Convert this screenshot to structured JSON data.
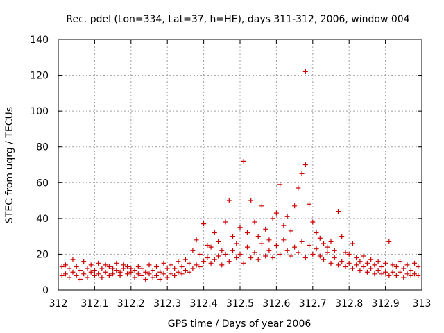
{
  "chart_data": {
    "type": "scatter",
    "title": "Rec. pdel (Lon=334, Lat=37, h=HE), days 311-312, 2006, window 004",
    "xlabel": "GPS time / Days of year 2006",
    "ylabel": "STEC from uqrg / TECUs",
    "xlim": [
      312,
      313
    ],
    "ylim": [
      0,
      140
    ],
    "xticks": [
      312,
      312.1,
      312.2,
      312.3,
      312.4,
      312.5,
      312.6,
      312.7,
      312.8,
      312.9,
      313
    ],
    "xtick_labels": [
      "312",
      "312.1",
      "312.2",
      "312.3",
      "312.4",
      "312.5",
      "312.6",
      "312.7",
      "312.8",
      "312.9",
      "313"
    ],
    "yticks": [
      0,
      20,
      40,
      60,
      80,
      100,
      120,
      140
    ],
    "ytick_labels": [
      "0",
      "20",
      "40",
      "60",
      "80",
      "100",
      "120",
      "140"
    ],
    "grid": true,
    "marker": "+",
    "color": "#cc0000",
    "series": [
      {
        "name": "STEC",
        "points": [
          [
            312.01,
            8
          ],
          [
            312.01,
            13
          ],
          [
            312.02,
            9
          ],
          [
            312.02,
            14
          ],
          [
            312.03,
            7
          ],
          [
            312.03,
            12
          ],
          [
            312.04,
            10
          ],
          [
            312.04,
            17
          ],
          [
            312.05,
            8
          ],
          [
            312.05,
            13
          ],
          [
            312.06,
            6
          ],
          [
            312.06,
            11
          ],
          [
            312.07,
            9
          ],
          [
            312.07,
            16
          ],
          [
            312.08,
            7
          ],
          [
            312.08,
            12
          ],
          [
            312.09,
            10
          ],
          [
            312.09,
            14
          ],
          [
            312.1,
            8
          ],
          [
            312.1,
            11
          ],
          [
            312.11,
            9
          ],
          [
            312.11,
            15
          ],
          [
            312.12,
            7
          ],
          [
            312.12,
            12
          ],
          [
            312.13,
            10
          ],
          [
            312.13,
            14
          ],
          [
            312.14,
            8
          ],
          [
            312.14,
            13
          ],
          [
            312.15,
            9
          ],
          [
            312.15,
            12
          ],
          [
            312.16,
            11
          ],
          [
            312.16,
            15
          ],
          [
            312.17,
            8
          ],
          [
            312.17,
            10
          ],
          [
            312.18,
            12
          ],
          [
            312.18,
            14
          ],
          [
            312.19,
            9
          ],
          [
            312.19,
            13
          ],
          [
            312.2,
            10
          ],
          [
            312.2,
            12
          ],
          [
            312.21,
            7
          ],
          [
            312.21,
            11
          ],
          [
            312.22,
            9
          ],
          [
            312.22,
            13
          ],
          [
            312.23,
            8
          ],
          [
            312.23,
            12
          ],
          [
            312.24,
            6
          ],
          [
            312.24,
            10
          ],
          [
            312.25,
            9
          ],
          [
            312.25,
            14
          ],
          [
            312.26,
            7
          ],
          [
            312.26,
            11
          ],
          [
            312.27,
            8
          ],
          [
            312.27,
            13
          ],
          [
            312.28,
            6
          ],
          [
            312.28,
            10
          ],
          [
            312.29,
            9
          ],
          [
            312.29,
            15
          ],
          [
            312.3,
            7
          ],
          [
            312.3,
            12
          ],
          [
            312.31,
            9
          ],
          [
            312.31,
            14
          ],
          [
            312.32,
            8
          ],
          [
            312.32,
            12
          ],
          [
            312.33,
            10
          ],
          [
            312.33,
            16
          ],
          [
            312.34,
            9
          ],
          [
            312.34,
            13
          ],
          [
            312.35,
            11
          ],
          [
            312.35,
            17
          ],
          [
            312.36,
            10
          ],
          [
            312.36,
            15
          ],
          [
            312.37,
            12
          ],
          [
            312.37,
            22
          ],
          [
            312.38,
            14
          ],
          [
            312.38,
            28
          ],
          [
            312.39,
            13
          ],
          [
            312.39,
            20
          ],
          [
            312.4,
            16
          ],
          [
            312.4,
            37
          ],
          [
            312.41,
            18
          ],
          [
            312.41,
            25
          ],
          [
            312.42,
            15
          ],
          [
            312.42,
            24
          ],
          [
            312.43,
            17
          ],
          [
            312.43,
            32
          ],
          [
            312.44,
            19
          ],
          [
            312.44,
            27
          ],
          [
            312.45,
            14
          ],
          [
            312.45,
            22
          ],
          [
            312.46,
            20
          ],
          [
            312.46,
            38
          ],
          [
            312.47,
            16
          ],
          [
            312.47,
            50
          ],
          [
            312.48,
            22
          ],
          [
            312.48,
            30
          ],
          [
            312.49,
            18
          ],
          [
            312.49,
            26
          ],
          [
            312.5,
            20
          ],
          [
            312.5,
            35
          ],
          [
            312.51,
            15
          ],
          [
            312.51,
            72
          ],
          [
            312.52,
            24
          ],
          [
            312.52,
            32
          ],
          [
            312.53,
            18
          ],
          [
            312.53,
            50
          ],
          [
            312.54,
            21
          ],
          [
            312.54,
            38
          ],
          [
            312.55,
            17
          ],
          [
            312.55,
            30
          ],
          [
            312.56,
            26
          ],
          [
            312.56,
            47
          ],
          [
            312.57,
            19
          ],
          [
            312.57,
            34
          ],
          [
            312.58,
            22
          ],
          [
            312.58,
            28
          ],
          [
            312.59,
            18
          ],
          [
            312.59,
            40
          ],
          [
            312.6,
            25
          ],
          [
            312.6,
            43
          ],
          [
            312.61,
            20
          ],
          [
            312.61,
            59
          ],
          [
            312.62,
            28
          ],
          [
            312.62,
            36
          ],
          [
            312.63,
            22
          ],
          [
            312.63,
            41
          ],
          [
            312.64,
            19
          ],
          [
            312.64,
            33
          ],
          [
            312.65,
            24
          ],
          [
            312.65,
            47
          ],
          [
            312.66,
            21
          ],
          [
            312.66,
            57
          ],
          [
            312.67,
            27
          ],
          [
            312.67,
            65
          ],
          [
            312.68,
            18
          ],
          [
            312.68,
            70
          ],
          [
            312.68,
            122
          ],
          [
            312.69,
            25
          ],
          [
            312.69,
            48
          ],
          [
            312.7,
            20
          ],
          [
            312.7,
            38
          ],
          [
            312.71,
            23
          ],
          [
            312.71,
            32
          ],
          [
            312.72,
            19
          ],
          [
            312.72,
            29
          ],
          [
            312.73,
            17
          ],
          [
            312.73,
            26
          ],
          [
            312.74,
            21
          ],
          [
            312.74,
            24
          ],
          [
            312.75,
            15
          ],
          [
            312.75,
            27
          ],
          [
            312.76,
            18
          ],
          [
            312.76,
            22
          ],
          [
            312.77,
            14
          ],
          [
            312.77,
            44
          ],
          [
            312.78,
            16
          ],
          [
            312.78,
            30
          ],
          [
            312.79,
            13
          ],
          [
            312.79,
            21
          ],
          [
            312.8,
            15
          ],
          [
            312.8,
            20
          ],
          [
            312.81,
            12
          ],
          [
            312.81,
            26
          ],
          [
            312.82,
            14
          ],
          [
            312.82,
            18
          ],
          [
            312.83,
            11
          ],
          [
            312.83,
            16
          ],
          [
            312.84,
            13
          ],
          [
            312.84,
            19
          ],
          [
            312.85,
            10
          ],
          [
            312.85,
            15
          ],
          [
            312.86,
            12
          ],
          [
            312.86,
            17
          ],
          [
            312.87,
            9
          ],
          [
            312.87,
            14
          ],
          [
            312.88,
            11
          ],
          [
            312.88,
            16
          ],
          [
            312.89,
            9
          ],
          [
            312.89,
            13
          ],
          [
            312.9,
            10
          ],
          [
            312.9,
            15
          ],
          [
            312.91,
            8
          ],
          [
            312.91,
            27
          ],
          [
            312.92,
            10
          ],
          [
            312.92,
            14
          ],
          [
            312.93,
            8
          ],
          [
            312.93,
            13
          ],
          [
            312.94,
            10
          ],
          [
            312.94,
            16
          ],
          [
            312.95,
            7
          ],
          [
            312.95,
            12
          ],
          [
            312.96,
            9
          ],
          [
            312.96,
            14
          ],
          [
            312.97,
            8
          ],
          [
            312.97,
            11
          ],
          [
            312.98,
            9
          ],
          [
            312.98,
            15
          ],
          [
            312.99,
            8
          ],
          [
            312.99,
            13
          ]
        ]
      }
    ]
  }
}
